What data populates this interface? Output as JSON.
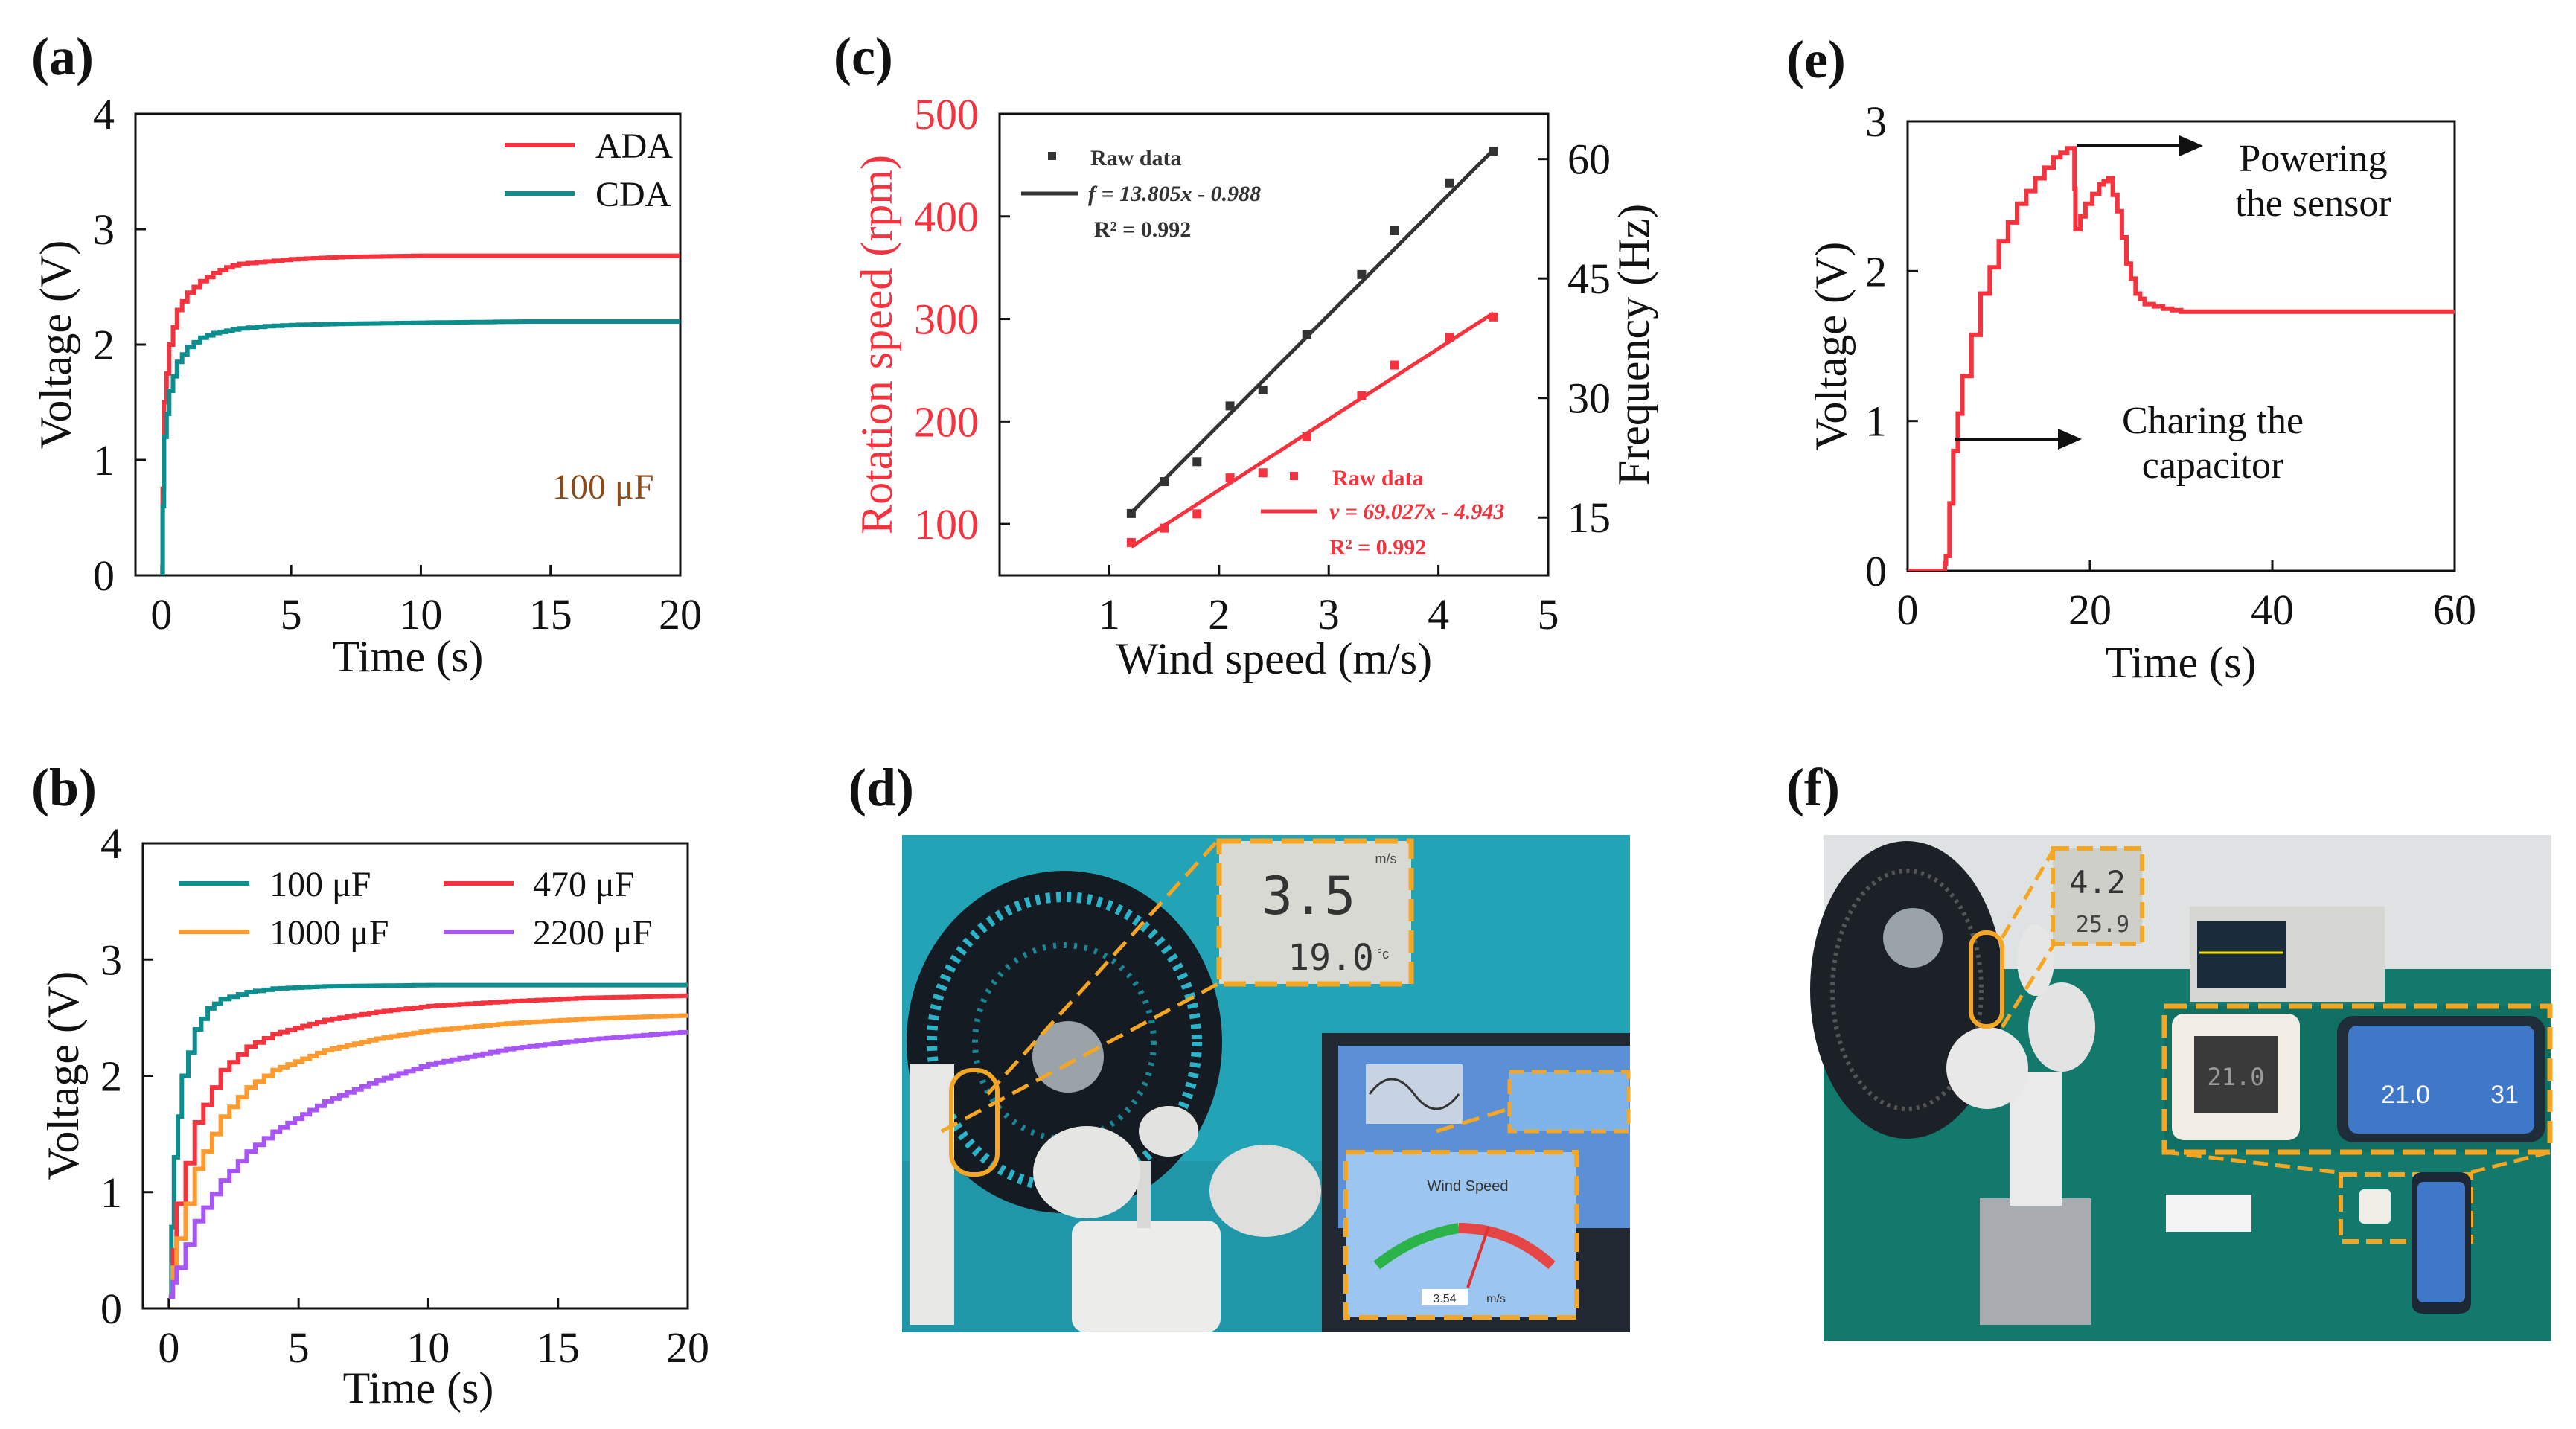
{
  "panels": {
    "a": "(a)",
    "b": "(b)",
    "c": "(c)",
    "d": "(d)",
    "e": "(e)",
    "f": "(f)"
  },
  "chart_data": [
    {
      "id": "a",
      "type": "line",
      "title": "",
      "xlabel": "Time (s)",
      "ylabel": "Voltage (V)",
      "xlim": [
        -1,
        20
      ],
      "ylim": [
        0,
        4
      ],
      "xticks": [
        0,
        5,
        10,
        15,
        20
      ],
      "yticks": [
        0,
        1,
        2,
        3,
        4
      ],
      "annotation": "100 μF",
      "series": [
        {
          "name": "ADA",
          "color": "#f5333f",
          "x": [
            0,
            0.1,
            0.3,
            0.6,
            1.0,
            1.5,
            2.0,
            2.5,
            3.0,
            4.0,
            5.0,
            7.0,
            10.0,
            14.0,
            20.0
          ],
          "y": [
            0,
            1.5,
            2.0,
            2.3,
            2.45,
            2.55,
            2.62,
            2.67,
            2.7,
            2.72,
            2.74,
            2.76,
            2.77,
            2.77,
            2.77
          ]
        },
        {
          "name": "CDA",
          "color": "#0c8e8e",
          "x": [
            0,
            0.1,
            0.3,
            0.6,
            1.0,
            1.5,
            2.0,
            2.5,
            3.0,
            4.0,
            5.0,
            7.0,
            10.0,
            14.0,
            20.0
          ],
          "y": [
            0,
            1.2,
            1.6,
            1.85,
            1.98,
            2.06,
            2.1,
            2.12,
            2.14,
            2.16,
            2.17,
            2.18,
            2.19,
            2.2,
            2.2
          ]
        }
      ]
    },
    {
      "id": "b",
      "type": "line",
      "title": "",
      "xlabel": "Time (s)",
      "ylabel": "Voltage (V)",
      "xlim": [
        -1,
        20
      ],
      "ylim": [
        0,
        4
      ],
      "xticks": [
        0,
        5,
        10,
        15,
        20
      ],
      "yticks": [
        0,
        1,
        2,
        3,
        4
      ],
      "series": [
        {
          "name": "100 μF",
          "color": "#0c8e8e",
          "x": [
            0,
            0.2,
            0.5,
            1.0,
            1.5,
            2.0,
            3.0,
            4.0,
            6.0,
            10.0,
            15.0,
            20.0
          ],
          "y": [
            0.1,
            1.3,
            2.0,
            2.4,
            2.58,
            2.66,
            2.72,
            2.75,
            2.77,
            2.78,
            2.78,
            2.78
          ]
        },
        {
          "name": "470 μF",
          "color": "#f5333f",
          "x": [
            0,
            0.3,
            1.0,
            2.0,
            3.0,
            4.0,
            6.0,
            8.0,
            10.0,
            13.0,
            16.0,
            20.0
          ],
          "y": [
            0.1,
            0.9,
            1.6,
            2.05,
            2.25,
            2.36,
            2.48,
            2.55,
            2.6,
            2.64,
            2.67,
            2.69
          ]
        },
        {
          "name": "1000 μF",
          "color": "#ff9a2e",
          "x": [
            0,
            0.3,
            1.0,
            2.0,
            3.0,
            4.0,
            6.0,
            8.0,
            10.0,
            13.0,
            16.0,
            20.0
          ],
          "y": [
            0.1,
            0.6,
            1.2,
            1.65,
            1.9,
            2.05,
            2.22,
            2.32,
            2.39,
            2.45,
            2.49,
            2.52
          ]
        },
        {
          "name": "2200 μF",
          "color": "#a855f7",
          "x": [
            0,
            0.3,
            1.0,
            2.0,
            3.0,
            4.0,
            6.0,
            8.0,
            10.0,
            13.0,
            16.0,
            20.0
          ],
          "y": [
            0.1,
            0.35,
            0.75,
            1.1,
            1.35,
            1.52,
            1.78,
            1.96,
            2.1,
            2.23,
            2.31,
            2.38
          ]
        }
      ]
    },
    {
      "id": "c",
      "type": "scatter",
      "title": "",
      "xlabel": "Wind speed (m/s)",
      "ylabel": "Rotation speed (rpm)",
      "ylabel_right": "Frequency (Hz)",
      "xlim": [
        0,
        5
      ],
      "ylim": [
        50,
        500
      ],
      "ylim_right": [
        7.73,
        65.67
      ],
      "xticks": [
        1,
        2,
        3,
        4,
        5
      ],
      "yticks": [
        100,
        200,
        300,
        400,
        500
      ],
      "yticks_right": [
        15,
        30,
        45,
        60
      ],
      "series": [
        {
          "name": "Raw data",
          "axis": "left",
          "color": "#f5333f",
          "x": [
            1.2,
            1.5,
            1.8,
            2.1,
            2.4,
            2.8,
            3.3,
            3.6,
            4.1,
            4.5
          ],
          "y": [
            82,
            96,
            110,
            145,
            150,
            185,
            225,
            255,
            282,
            302
          ],
          "fit": {
            "label": "v = 69.027x - 4.943",
            "r2": "R² = 0.992",
            "slope": 69.027,
            "intercept": -4.943
          }
        },
        {
          "name": "Raw data",
          "axis": "right",
          "color": "#333333",
          "x": [
            1.2,
            1.5,
            1.8,
            2.1,
            2.4,
            2.8,
            3.3,
            3.6,
            4.1,
            4.5
          ],
          "y": [
            15.5,
            19.5,
            22.0,
            29.0,
            31.0,
            38.0,
            45.5,
            51.0,
            57.0,
            61.0
          ],
          "fit": {
            "label": "f = 13.805x - 0.988",
            "r2": "R² = 0.992",
            "slope": 13.805,
            "intercept": -0.988
          }
        }
      ]
    },
    {
      "id": "e",
      "type": "line",
      "title": "",
      "xlabel": "Time (s)",
      "ylabel": "Voltage (V)",
      "xlim": [
        0,
        60
      ],
      "ylim": [
        0,
        3
      ],
      "xticks": [
        0,
        20,
        40,
        60
      ],
      "yticks": [
        0,
        1,
        2,
        3
      ],
      "annotations": [
        {
          "text": [
            "Powering",
            "the sensor"
          ]
        },
        {
          "text": [
            "Charing the",
            "capacitor"
          ]
        }
      ],
      "series": [
        {
          "name": "Voltage",
          "color": "#f5333f",
          "x": [
            0,
            4,
            4.2,
            5,
            6,
            8,
            10,
            12,
            14,
            16,
            17.5,
            18.2,
            18.4,
            19.5,
            21,
            22,
            23,
            24,
            25,
            26,
            28,
            30,
            34,
            40,
            50,
            60
          ],
          "y": [
            0,
            0,
            0.1,
            0.8,
            1.3,
            1.85,
            2.2,
            2.45,
            2.62,
            2.76,
            2.82,
            2.82,
            2.28,
            2.45,
            2.58,
            2.62,
            2.4,
            2.05,
            1.85,
            1.78,
            1.75,
            1.73,
            1.73,
            1.73,
            1.73,
            1.73
          ]
        }
      ]
    }
  ],
  "photo_d": {
    "meter_top": "3.5",
    "meter_unit": "m/s",
    "meter_bottom": "19.0",
    "meter_bottom_unit": "°c",
    "gauge_title": "Wind Speed",
    "gauge_value": "3.54",
    "gauge_unit": "m/s"
  },
  "photo_f": {
    "meter_top": "4.2",
    "meter_bottom": "25.9",
    "sensor_display": "21.0",
    "phone_left": "21.0",
    "phone_right": "31"
  }
}
